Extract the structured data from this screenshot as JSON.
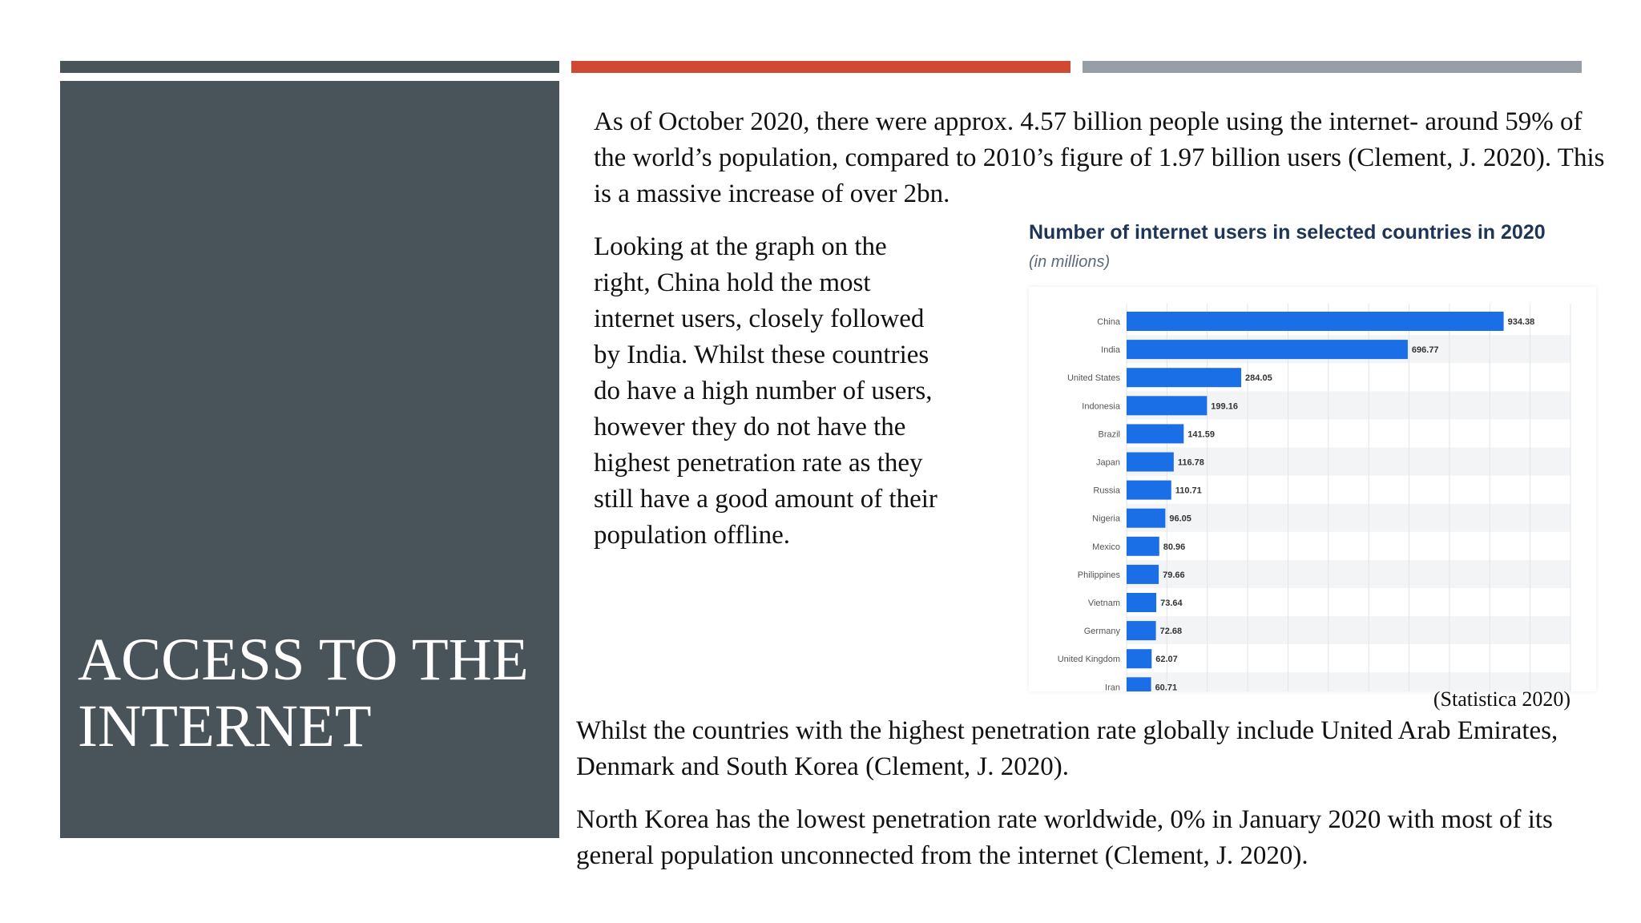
{
  "slide": {
    "title": "ACCESS TO THE INTERNET",
    "paragraph1": "As of October 2020, there were approx. 4.57 billion people using the internet- around 59% of the world’s population, compared to 2010’s figure of 1.97 billion users (Clement, J. 2020). This is a massive increase of over 2bn.",
    "paragraph2": "Looking at the graph on the right, China hold the most internet users, closely followed by India. Whilst these countries do have a high number of users, however they do not have the highest penetration rate as they still have a good amount of their population offline.",
    "paragraph3": "Whilst the countries with the highest penetration rate globally include United Arab Emirates, Denmark and South Korea (Clement, J. 2020).",
    "paragraph4": "North Korea has the lowest penetration rate worldwide, 0% in January 2020 with most of its general population unconnected from the internet (Clement, J. 2020).",
    "source_note": "(Statistica 2020)"
  },
  "colors": {
    "panel": "#48535a",
    "accent_red": "#d04a33",
    "accent_gray": "#979ea6",
    "bar": "#1a6ee6"
  },
  "chart_data": {
    "type": "bar",
    "orientation": "horizontal",
    "title": "Number of internet users in selected countries in 2020",
    "subtitle": "(in millions)",
    "categories": [
      "China",
      "India",
      "United States",
      "Indonesia",
      "Brazil",
      "Japan",
      "Russia",
      "Nigeria",
      "Mexico",
      "Philippines",
      "Vietnam",
      "Germany",
      "United Kingdom",
      "Iran"
    ],
    "values": [
      934.38,
      696.77,
      284.05,
      199.16,
      141.59,
      116.78,
      110.71,
      96.05,
      80.96,
      79.66,
      73.64,
      72.68,
      62.07,
      60.71
    ],
    "value_labels": [
      "934.38",
      "696.77",
      "284.05",
      "199.16",
      "141.59",
      "116.78",
      "110.71",
      "96.05",
      "80.96",
      "79.66",
      "73.64",
      "72.68",
      "62.07",
      "60.71"
    ],
    "xlim": [
      0,
      1100
    ],
    "grid": true
  }
}
